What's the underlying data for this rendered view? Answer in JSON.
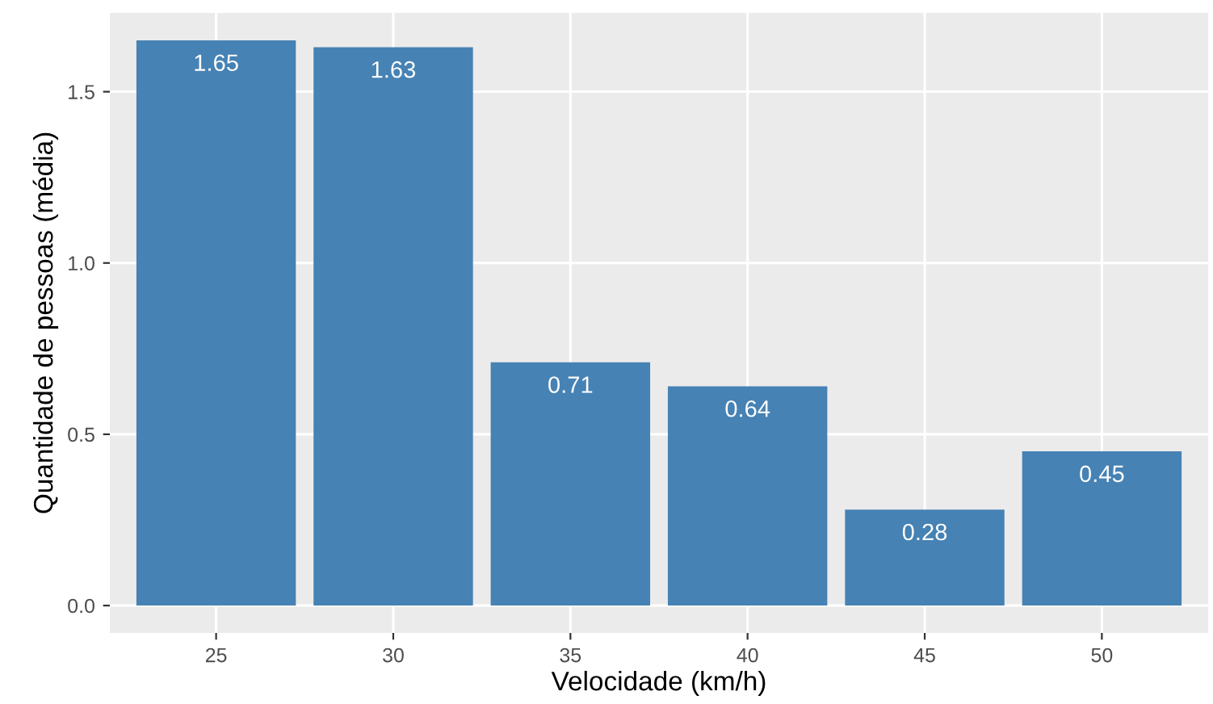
{
  "chart_data": {
    "type": "bar",
    "xlabel": "Velocidade (km/h)",
    "ylabel": "Quantidade de pessoas (média)",
    "categories": [
      "25",
      "30",
      "35",
      "40",
      "45",
      "50"
    ],
    "values": [
      1.65,
      1.63,
      0.71,
      0.64,
      0.28,
      0.45
    ],
    "color": "#4682b4",
    "ylim": [
      -0.08,
      1.73
    ],
    "yticks": [
      {
        "value": 0,
        "label": "0.0"
      },
      {
        "value": 0.5,
        "label": "0.5"
      },
      {
        "value": 1,
        "label": "1.0"
      },
      {
        "value": 1.5,
        "label": "1.5"
      }
    ],
    "grid": true,
    "data_labels": true
  }
}
